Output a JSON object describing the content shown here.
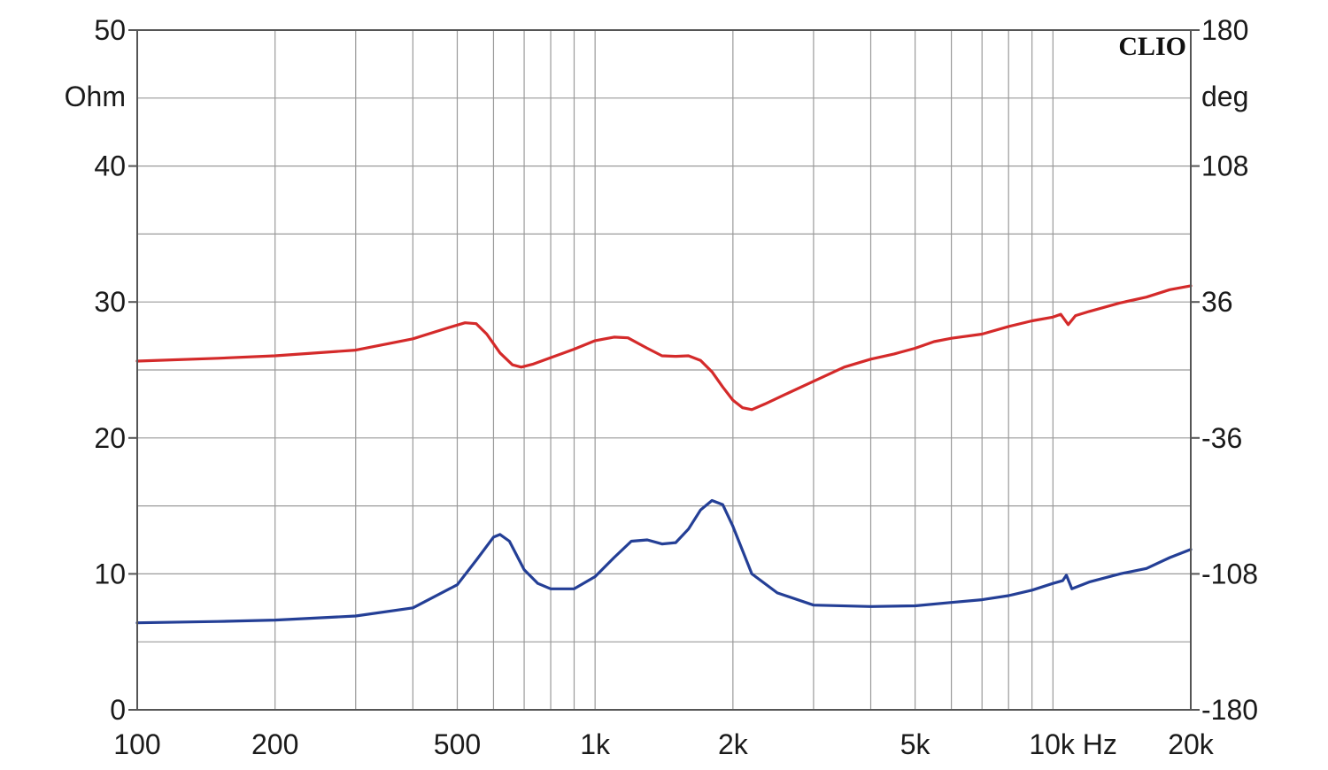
{
  "chart_data": {
    "type": "line",
    "brand": "CLIO",
    "x_scale": "log",
    "xlim": [
      100,
      20000
    ],
    "x_ticks": [
      {
        "value": 100,
        "label": "100"
      },
      {
        "value": 200,
        "label": "200"
      },
      {
        "value": 500,
        "label": "500"
      },
      {
        "value": 1000,
        "label": "1k"
      },
      {
        "value": 2000,
        "label": "2k"
      },
      {
        "value": 5000,
        "label": "5k"
      },
      {
        "value": 10000,
        "label": "10k Hz"
      },
      {
        "value": 20000,
        "label": "20k"
      }
    ],
    "y_left": {
      "unit": "Ohm",
      "ylim": [
        0,
        50
      ],
      "ticks": [
        {
          "value": 0,
          "label": "0"
        },
        {
          "value": 10,
          "label": "10"
        },
        {
          "value": 20,
          "label": "20"
        },
        {
          "value": 30,
          "label": "30"
        },
        {
          "value": 40,
          "label": "40"
        },
        {
          "value": 50,
          "label": "50"
        }
      ]
    },
    "y_right": {
      "unit": "deg",
      "ylim": [
        -180,
        180
      ],
      "ticks": [
        {
          "value": -180,
          "label": "-180"
        },
        {
          "value": -108,
          "label": "-108"
        },
        {
          "value": -36,
          "label": "-36"
        },
        {
          "value": 36,
          "label": "36"
        },
        {
          "value": 108,
          "label": "108"
        },
        {
          "value": 180,
          "label": "180"
        }
      ]
    },
    "grid": true,
    "series": [
      {
        "axis": "right",
        "color": "#d42a2a",
        "points": [
          [
            100,
            4.7
          ],
          [
            150,
            6.2
          ],
          [
            200,
            7.5
          ],
          [
            300,
            10.5
          ],
          [
            400,
            16.5
          ],
          [
            480,
            22.5
          ],
          [
            520,
            25
          ],
          [
            550,
            24.5
          ],
          [
            580,
            19
          ],
          [
            620,
            9
          ],
          [
            660,
            2.7
          ],
          [
            690,
            1.5
          ],
          [
            730,
            3
          ],
          [
            800,
            6.5
          ],
          [
            900,
            11
          ],
          [
            1000,
            15.5
          ],
          [
            1100,
            17.4
          ],
          [
            1180,
            17
          ],
          [
            1300,
            11.5
          ],
          [
            1400,
            7.5
          ],
          [
            1500,
            7.2
          ],
          [
            1600,
            7.5
          ],
          [
            1700,
            5
          ],
          [
            1800,
            -1
          ],
          [
            1900,
            -9
          ],
          [
            2000,
            -16
          ],
          [
            2100,
            -20
          ],
          [
            2200,
            -21
          ],
          [
            2350,
            -18
          ],
          [
            2600,
            -13
          ],
          [
            3000,
            -6
          ],
          [
            3500,
            1.5
          ],
          [
            4000,
            5.7
          ],
          [
            4500,
            8.5
          ],
          [
            5000,
            11.5
          ],
          [
            5500,
            15
          ],
          [
            6000,
            16.8
          ],
          [
            7000,
            19
          ],
          [
            8000,
            23
          ],
          [
            9000,
            26
          ],
          [
            10000,
            28
          ],
          [
            10400,
            29.5
          ],
          [
            10800,
            24
          ],
          [
            11200,
            28.8
          ],
          [
            12000,
            31
          ],
          [
            14000,
            35.5
          ],
          [
            16000,
            38.6
          ],
          [
            18000,
            42.5
          ],
          [
            20000,
            44.6
          ]
        ]
      },
      {
        "axis": "left",
        "color": "#243f96",
        "points": [
          [
            100,
            6.4
          ],
          [
            150,
            6.5
          ],
          [
            200,
            6.6
          ],
          [
            300,
            6.9
          ],
          [
            400,
            7.5
          ],
          [
            500,
            9.2
          ],
          [
            550,
            11
          ],
          [
            600,
            12.7
          ],
          [
            620,
            12.9
          ],
          [
            650,
            12.4
          ],
          [
            700,
            10.3
          ],
          [
            750,
            9.3
          ],
          [
            800,
            8.9
          ],
          [
            900,
            8.9
          ],
          [
            1000,
            9.8
          ],
          [
            1100,
            11.2
          ],
          [
            1200,
            12.4
          ],
          [
            1300,
            12.5
          ],
          [
            1400,
            12.2
          ],
          [
            1500,
            12.3
          ],
          [
            1600,
            13.3
          ],
          [
            1700,
            14.7
          ],
          [
            1800,
            15.4
          ],
          [
            1900,
            15.1
          ],
          [
            2000,
            13.5
          ],
          [
            2200,
            10
          ],
          [
            2500,
            8.6
          ],
          [
            3000,
            7.7
          ],
          [
            4000,
            7.6
          ],
          [
            5000,
            7.65
          ],
          [
            6000,
            7.9
          ],
          [
            7000,
            8.1
          ],
          [
            8000,
            8.4
          ],
          [
            9000,
            8.8
          ],
          [
            10000,
            9.3
          ],
          [
            10500,
            9.5
          ],
          [
            10700,
            9.9
          ],
          [
            11000,
            8.9
          ],
          [
            12000,
            9.4
          ],
          [
            14000,
            10
          ],
          [
            16000,
            10.4
          ],
          [
            18000,
            11.2
          ],
          [
            20000,
            11.8
          ]
        ]
      }
    ]
  }
}
